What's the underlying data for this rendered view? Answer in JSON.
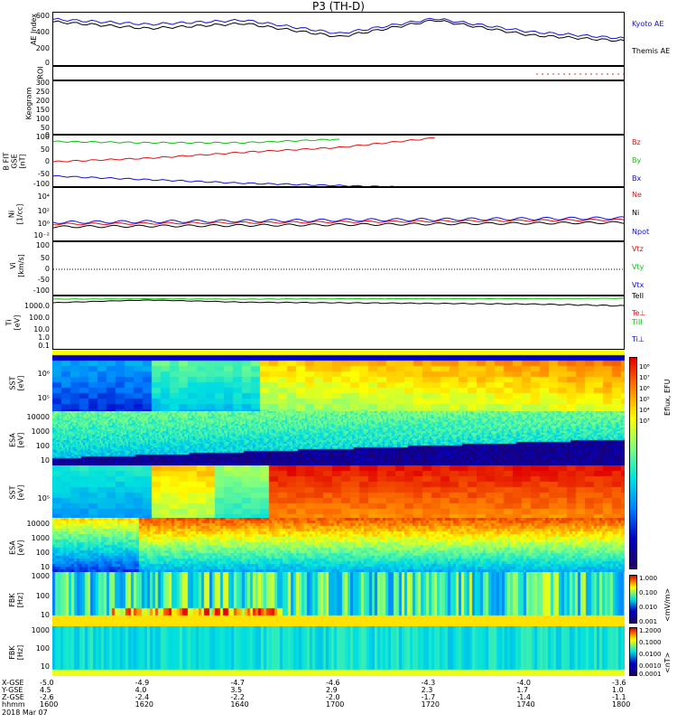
{
  "title": "P3 (TH-D)",
  "panels": {
    "ae": {
      "ylabel": "AE Index",
      "ticks": [
        "600",
        "400",
        "200",
        "0"
      ],
      "legend": [
        "Kyoto AE",
        "Themis AE"
      ]
    },
    "roi": {
      "ylabel": "ROI"
    },
    "keogram": {
      "ylabel": "Keogram",
      "ticks": [
        "300",
        "250",
        "200",
        "150",
        "100",
        "50",
        "0"
      ]
    },
    "bfield": {
      "ylabel": "B FIT\nGSE\n[nT]",
      "ticks": [
        "100",
        "50",
        "0",
        "-50",
        "-100"
      ],
      "legend": [
        "Bz",
        "By",
        "Bx"
      ]
    },
    "density": {
      "ylabel": "Ni\n[1/cc]",
      "ticks": [
        "10⁴",
        "10²",
        "10⁰",
        "10⁻²"
      ],
      "legend": [
        "Ne",
        "Ni",
        "Npot"
      ]
    },
    "velocity": {
      "ylabel": "Vi\n[km/s]",
      "ticks": [
        "100",
        "50",
        "0",
        "-50",
        "-100"
      ],
      "legend": [
        "Vtz",
        "Vty",
        "Vtx"
      ]
    },
    "temp": {
      "ylabel": "Ti\n[eV]",
      "ticks": [
        "1000.0",
        "100.0",
        "10.0",
        "1.0",
        "0.1"
      ],
      "legend": [
        "TeII",
        "Te⊥",
        "TiII",
        "Ti⊥"
      ]
    },
    "sst_i": {
      "ylabel": "SST\n[eV]",
      "ticks": [
        "10⁶",
        "10⁵"
      ]
    },
    "esa_i": {
      "ylabel": "ESA\n[eV]",
      "ticks": [
        "10000",
        "1000",
        "100",
        "10"
      ]
    },
    "sst_e": {
      "ylabel": "SST\n[eV]",
      "ticks": [
        "10⁵"
      ]
    },
    "esa_e": {
      "ylabel": "ESA\n[eV]",
      "ticks": [
        "10000",
        "1000",
        "100",
        "10"
      ]
    },
    "fbk1": {
      "ylabel": "FBK\n[Hz]",
      "ticks": [
        "1000",
        "100",
        "10"
      ]
    },
    "fbk2": {
      "ylabel": "FBK\n[Hz]",
      "ticks": [
        "1000",
        "100",
        "10"
      ]
    }
  },
  "colorbars": {
    "eflux": {
      "title": "Eflux, EFU",
      "labels": [
        "10⁸",
        "10⁷",
        "10⁶",
        "10⁵",
        "10⁴",
        "10³"
      ]
    },
    "fbk1": {
      "title": "<mV/m>",
      "labels": [
        "1.000",
        "0.100",
        "0.010",
        "0.001"
      ]
    },
    "fbk2": {
      "title": "<nT>",
      "labels": [
        "1.2000",
        "0.1000",
        "0.0100",
        "0.0010",
        "0.0001"
      ]
    }
  },
  "xaxis": {
    "row_labels": [
      "X-GSE",
      "Y-GSE",
      "Z-GSE",
      "hhmm",
      "2018 Mar 07"
    ],
    "x_gse": [
      "-5.0",
      "-4.9",
      "-4.7",
      "-4.6",
      "-4.3",
      "-4.0",
      "-3.6"
    ],
    "y_gse": [
      "4.5",
      "4.0",
      "3.5",
      "2.9",
      "2.3",
      "1.7",
      "1.0"
    ],
    "z_gse": [
      "-2.6",
      "-2.4",
      "-2.2",
      "-2.0",
      "-1.7",
      "-1.4",
      "-1.1"
    ],
    "hhmm": [
      "1600",
      "1620",
      "1640",
      "1700",
      "1720",
      "1740",
      "1800"
    ]
  },
  "chart_data": [
    {
      "type": "line",
      "title": "P3 (TH-D)",
      "ylabel": "AE Index",
      "ylim": [
        0,
        650
      ],
      "x": [
        "1600",
        "1620",
        "1640",
        "1700",
        "1720",
        "1740",
        "1800"
      ],
      "series": [
        {
          "name": "Kyoto AE",
          "values": [
            570,
            510,
            560,
            400,
            580,
            420,
            340
          ]
        },
        {
          "name": "Themis AE",
          "values": [
            540,
            460,
            520,
            360,
            560,
            380,
            310
          ]
        }
      ]
    },
    {
      "type": "line",
      "ylabel": "B FIT GSE [nT]",
      "ylim": [
        -110,
        110
      ],
      "x": [
        "1600",
        "1620",
        "1640",
        "1700",
        "1720"
      ],
      "series": [
        {
          "name": "Bz",
          "values": [
            0,
            15,
            40,
            60,
            100
          ]
        },
        {
          "name": "By",
          "values": [
            85,
            80,
            80,
            95,
            null
          ]
        },
        {
          "name": "Bx",
          "values": [
            -60,
            -75,
            -90,
            -100,
            -110
          ]
        }
      ]
    },
    {
      "type": "line",
      "ylabel": "Ti [eV]",
      "ylim": [
        0.1,
        3000
      ],
      "yscale": "log",
      "x": [
        "1600",
        "1620",
        "1640",
        "1700",
        "1720",
        "1740",
        "1800"
      ],
      "series": [
        {
          "name": "TeII",
          "values": [
            900,
            1500,
            1000,
            900,
            800,
            700,
            500
          ]
        },
        {
          "name": "TiII",
          "values": [
            1800,
            1900,
            1800,
            1900,
            2000,
            2000,
            2100
          ]
        }
      ]
    },
    {
      "type": "heatmap",
      "ylabel": "SST [eV]"
    },
    {
      "type": "heatmap",
      "ylabel": "ESA [eV]"
    },
    {
      "type": "heatmap",
      "ylabel": "SST [eV]"
    },
    {
      "type": "heatmap",
      "ylabel": "ESA [eV]"
    },
    {
      "type": "heatmap",
      "ylabel": "FBK [Hz]"
    },
    {
      "type": "heatmap",
      "ylabel": "FBK [Hz]"
    }
  ]
}
